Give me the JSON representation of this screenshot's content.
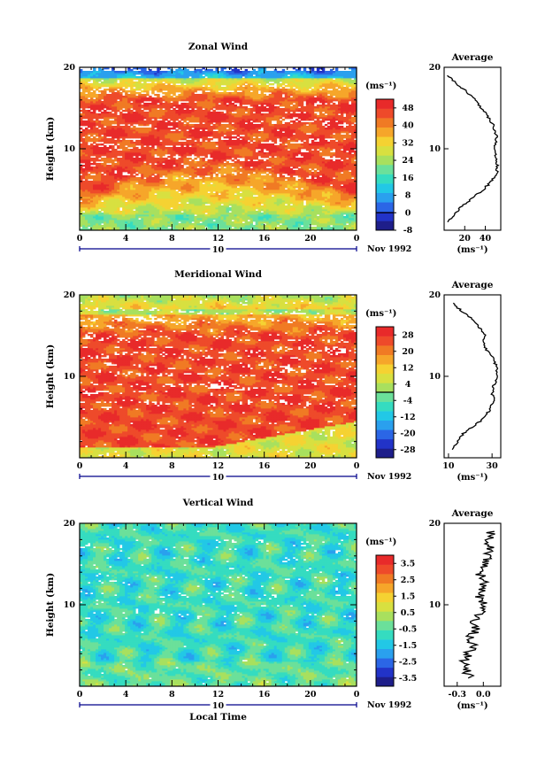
{
  "chart_data": [
    {
      "type": "heatmap",
      "title": "Zonal Wind",
      "ylabel": "Height (km)",
      "xlabel": "",
      "y_ticks": [
        "20",
        "10"
      ],
      "x_ticks": [
        "0",
        "4",
        "8",
        "12",
        "16",
        "20",
        "0"
      ],
      "date_bar_label": "10",
      "date_label": "Nov 1992",
      "ylim": [
        0,
        20
      ],
      "xlim": [
        0,
        24
      ],
      "colorbar": {
        "unit": "(ms⁻¹)",
        "ticks": [
          "48",
          "40",
          "32",
          "24",
          "16",
          "8",
          "0",
          "-8"
        ],
        "range": [
          -8,
          52
        ],
        "zero_value": 0
      },
      "profile": {
        "title": "Average",
        "y_ticks": [
          "20",
          "10"
        ],
        "x_ticks": [
          "20",
          "40"
        ],
        "xlim": [
          0,
          55
        ],
        "xlabel": "(ms⁻¹)",
        "height_km": [
          1,
          2,
          3,
          4,
          5,
          6,
          7,
          8,
          9,
          10,
          11,
          12,
          13,
          14,
          15,
          16,
          17,
          18,
          19
        ],
        "values": [
          4,
          10,
          18,
          28,
          38,
          46,
          51,
          52,
          50,
          49,
          51,
          50,
          47,
          42,
          36,
          30,
          22,
          12,
          4
        ]
      }
    },
    {
      "type": "heatmap",
      "title": "Meridional Wind",
      "ylabel": "Height (km)",
      "xlabel": "",
      "y_ticks": [
        "20",
        "10"
      ],
      "x_ticks": [
        "0",
        "4",
        "8",
        "12",
        "16",
        "20",
        "0"
      ],
      "date_bar_label": "10",
      "date_label": "Nov 1992",
      "ylim": [
        0,
        20
      ],
      "xlim": [
        0,
        24
      ],
      "colorbar": {
        "unit": "(ms⁻¹)",
        "ticks": [
          "28",
          "20",
          "12",
          "4",
          "-4",
          "-12",
          "-20",
          "-28"
        ],
        "range": [
          -32,
          32
        ],
        "zero_value": 0
      },
      "profile": {
        "title": "Average",
        "y_ticks": [
          "20",
          "10"
        ],
        "x_ticks": [
          "10",
          "30"
        ],
        "xlim": [
          8,
          34
        ],
        "xlabel": "(ms⁻¹)",
        "height_km": [
          1,
          2,
          3,
          4,
          5,
          6,
          7,
          8,
          9,
          10,
          11,
          12,
          13,
          14,
          15,
          16,
          17,
          18,
          19
        ],
        "values": [
          12,
          14,
          17,
          22,
          27,
          29,
          31,
          30,
          31,
          33,
          32,
          31,
          28,
          26,
          27,
          24,
          21,
          16,
          12
        ]
      }
    },
    {
      "type": "heatmap",
      "title": "Vertical Wind",
      "ylabel": "Height (km)",
      "xlabel": "Local Time",
      "y_ticks": [
        "20",
        "10"
      ],
      "x_ticks": [
        "0",
        "4",
        "8",
        "12",
        "16",
        "20",
        "0"
      ],
      "date_bar_label": "10",
      "date_label": "Nov 1992",
      "ylim": [
        0,
        20
      ],
      "xlim": [
        0,
        24
      ],
      "colorbar": {
        "unit": "(ms⁻¹)",
        "ticks": [
          "3.5",
          "2.5",
          "1.5",
          "0.5",
          "-0.5",
          "-1.5",
          "-2.5",
          "-3.5"
        ],
        "range": [
          -4,
          4
        ],
        "zero_value": null
      },
      "profile": {
        "title": "Average",
        "y_ticks": [
          "20",
          "10"
        ],
        "x_ticks": [
          "-0.3",
          "0.0"
        ],
        "xlim": [
          -0.45,
          0.2
        ],
        "xlabel": "(ms⁻¹)",
        "height_km": [
          1,
          2,
          3,
          4,
          5,
          6,
          7,
          8,
          9,
          10,
          11,
          12,
          13,
          14,
          15,
          16,
          17,
          18,
          19
        ],
        "values": [
          -0.15,
          -0.2,
          -0.22,
          -0.18,
          -0.12,
          -0.15,
          -0.08,
          -0.1,
          -0.03,
          0.02,
          -0.05,
          -0.02,
          0.0,
          -0.05,
          0.02,
          0.05,
          0.08,
          0.05,
          0.1
        ]
      }
    }
  ]
}
